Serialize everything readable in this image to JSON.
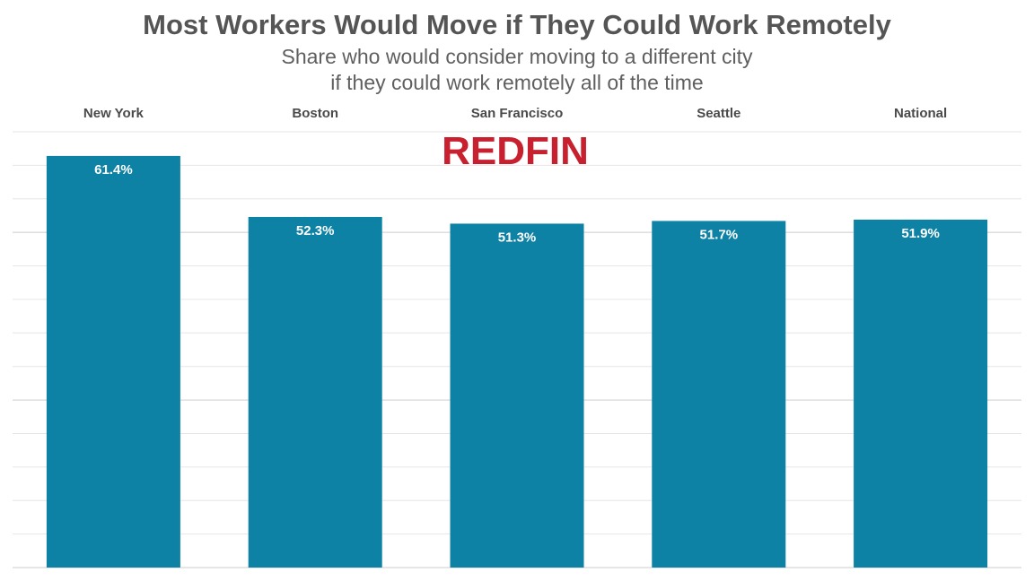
{
  "chart_data": {
    "type": "bar",
    "title": "Most Workers Would Move if They Could Work Remotely",
    "subtitle": [
      "Share who would consider moving to a different city",
      "if they could work remotely all of the time"
    ],
    "categories": [
      "New York",
      "Boston",
      "San Francisco",
      "Seattle",
      "National"
    ],
    "values": [
      61.4,
      52.3,
      51.3,
      51.7,
      51.9
    ],
    "value_labels": [
      "61.4%",
      "52.3%",
      "51.3%",
      "51.7%",
      "51.9%"
    ],
    "ylim": [
      0,
      65
    ],
    "grid": true,
    "category_labels_position": "top",
    "bar_color": "#0e82a4",
    "gridline_color": "#e6e6e6",
    "major_gridline_color": "#cccccc",
    "watermark": "REDFIN",
    "watermark_color": "#c8202e"
  }
}
